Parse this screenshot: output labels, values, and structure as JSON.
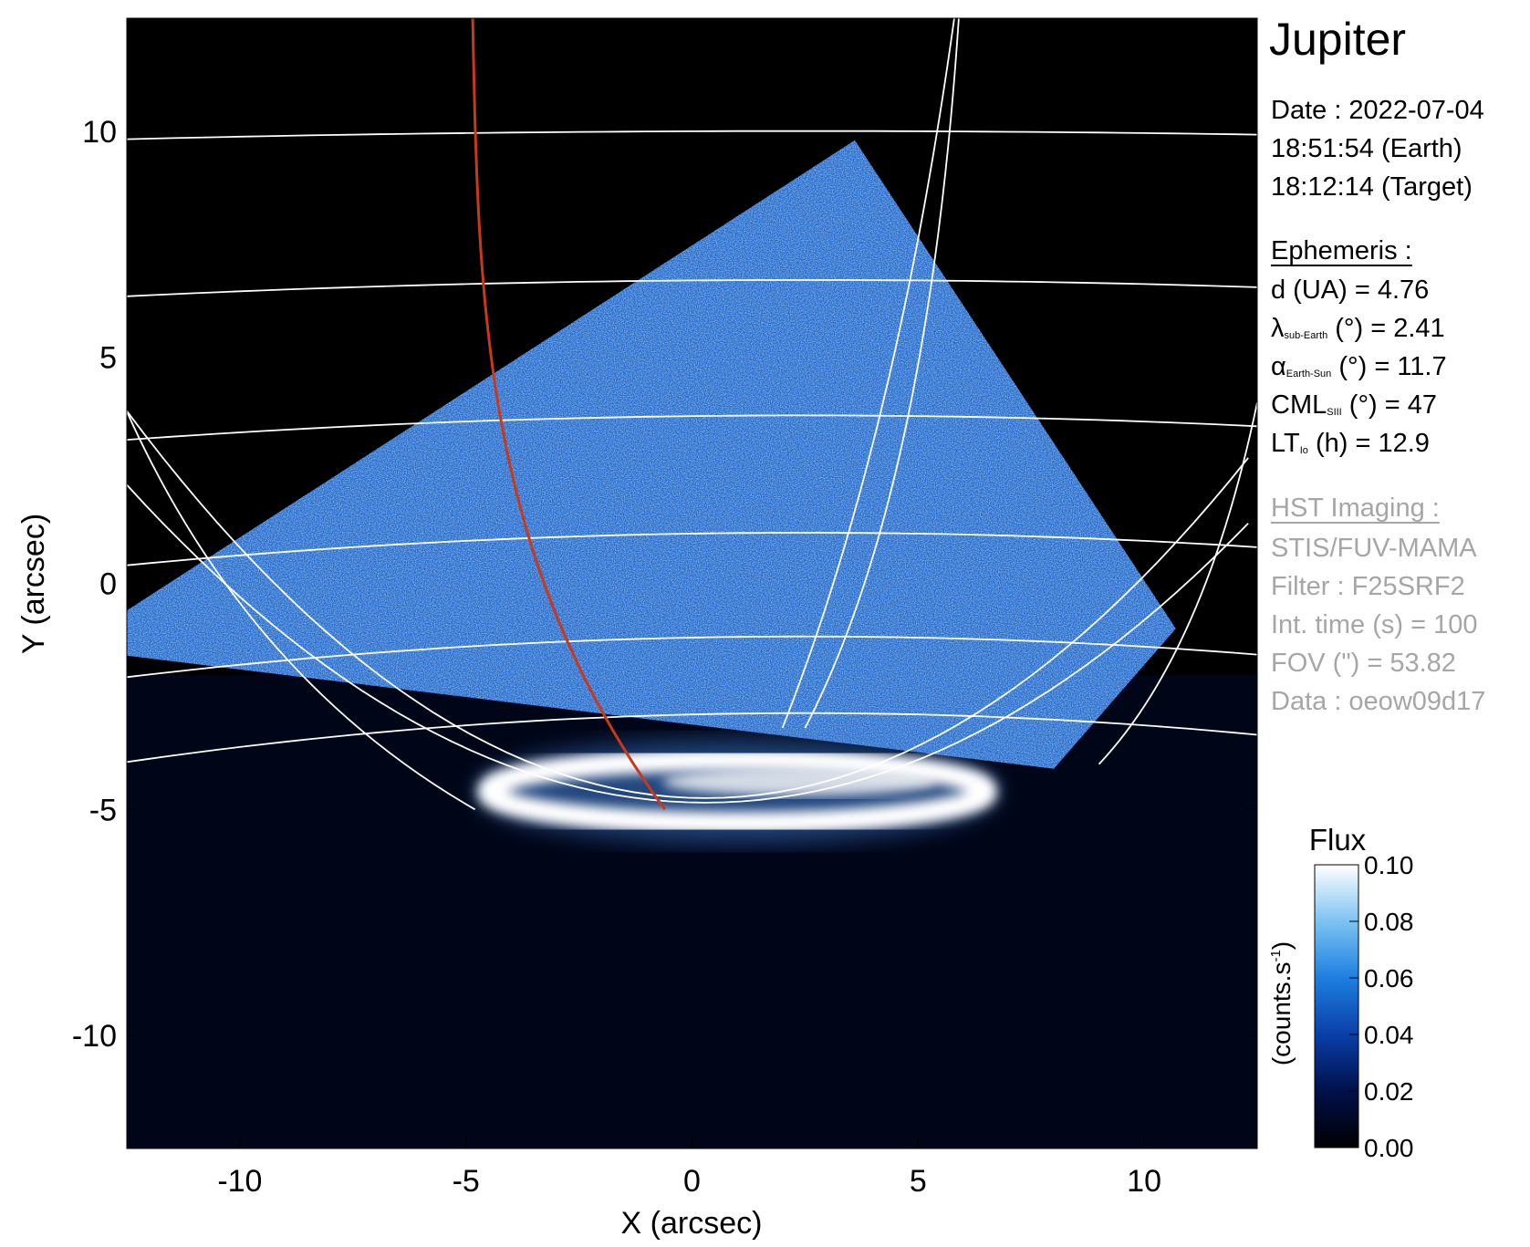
{
  "chart_data": {
    "type": "heatmap",
    "title": "Jupiter",
    "xlabel": "X (arcsec)",
    "ylabel": "Y (arcsec)",
    "xlim": [
      -12.5,
      12.5
    ],
    "ylim": [
      -12.5,
      12.5
    ],
    "xticks": [
      -10,
      -5,
      0,
      5,
      10
    ],
    "yticks": [
      -10,
      -5,
      0,
      5,
      10
    ],
    "xtick_labels": [
      "-10",
      "-5",
      "0",
      "5",
      "10"
    ],
    "ytick_labels": [
      "-10",
      "-5",
      "0",
      "5",
      "10"
    ],
    "colorbar": {
      "title": "Flux",
      "label": "(counts.s",
      "label_exp": "-1",
      "label_close": ")",
      "range": [
        0.0,
        0.1
      ],
      "ticks": [
        0.0,
        0.02,
        0.04,
        0.06,
        0.08,
        0.1
      ],
      "tick_labels": [
        "0.00",
        "0.02",
        "0.04",
        "0.06",
        "0.08",
        "0.10"
      ],
      "colormap": [
        "#000000",
        "#00104a",
        "#0a3fa8",
        "#1e7fe0",
        "#7cc3f2",
        "#ffffff"
      ]
    },
    "observation_footprint": [
      [
        -12.5,
        -0.6
      ],
      [
        3.6,
        9.8
      ],
      [
        10.7,
        -1.0
      ],
      [
        8.0,
        -4.1
      ],
      [
        -12.5,
        -1.6
      ]
    ],
    "auroral_oval": {
      "center": [
        1.0,
        -4.6
      ],
      "half_widths": [
        5.5,
        0.7
      ]
    },
    "grid_color": "#ffffff",
    "meridian_color": "#c8391b",
    "background_color": "#000000"
  },
  "info": {
    "date_line": "Date : 2022-07-04",
    "earth_time": "18:51:54 (Earth)",
    "target_time": "18:12:14 (Target)",
    "ephemeris_header": "Ephemeris :",
    "d_line": "d (UA)    = 4.76",
    "lambda_symbol": "λ",
    "lambda_sub": "sub-Earth",
    "lambda_rest": " (°) = 2.41",
    "alpha_symbol": "α",
    "alpha_sub": "Earth-Sun",
    "alpha_rest": " (°) = 11.7",
    "cml_main": "CML",
    "cml_sub": "SIII",
    "cml_rest": " (°) = 47",
    "lt_main": "LT",
    "lt_sub": "Io",
    "lt_rest": " (h) = 12.9",
    "hst_header": "HST Imaging :",
    "instrument": "STIS/FUV-MAMA",
    "filter": "Filter : F25SRF2",
    "int_time": "Int. time (s) = 100",
    "fov": "FOV (\") = 53.82",
    "data_id": "Data : oeow09d17"
  }
}
